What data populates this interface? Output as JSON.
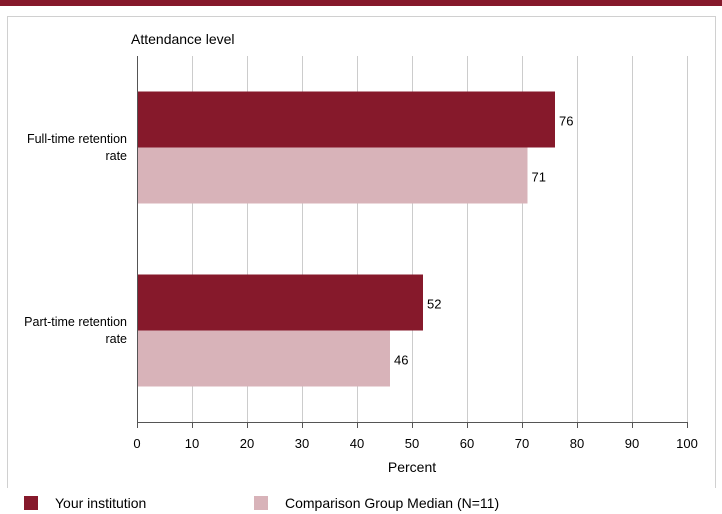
{
  "chart_data": {
    "type": "bar",
    "orientation": "horizontal",
    "title": "Attendance level",
    "xlabel": "Percent",
    "ylabel": "",
    "xlim": [
      0,
      100
    ],
    "ticks": [
      0,
      10,
      20,
      30,
      40,
      50,
      60,
      70,
      80,
      90,
      100
    ],
    "grid": true,
    "legend_position": "bottom",
    "categories": [
      [
        "Full-time retention",
        "rate"
      ],
      [
        "Part-time retention",
        "rate"
      ]
    ],
    "series": [
      {
        "name": "Your institution",
        "color": "#86192b",
        "values": [
          76,
          52
        ]
      },
      {
        "name": "Comparison Group Median (N=11)",
        "color": "#d8b3b9",
        "values": [
          71,
          46
        ]
      }
    ]
  }
}
